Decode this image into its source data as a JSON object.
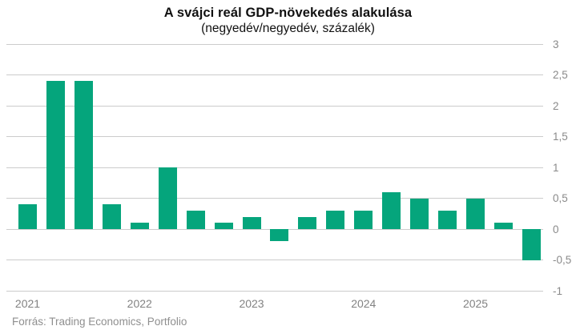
{
  "header": {
    "title": "A svájci reál GDP-növekedés alakulása",
    "subtitle": "(negyedév/negyedév, százalék)"
  },
  "chart_data": {
    "type": "bar",
    "title": "A svájci reál GDP-növekedés alakulása",
    "subtitle": "(negyedév/negyedév, százalék)",
    "categories": [
      "2021 Q1",
      "2021 Q2",
      "2021 Q3",
      "2021 Q4",
      "2022 Q1",
      "2022 Q2",
      "2022 Q3",
      "2022 Q4",
      "2023 Q1",
      "2023 Q2",
      "2023 Q3",
      "2023 Q4",
      "2024 Q1",
      "2024 Q2",
      "2024 Q3",
      "2024 Q4",
      "2025 Q1",
      "2025 Q2",
      "2025 Q3"
    ],
    "values": [
      0.4,
      2.4,
      2.4,
      0.4,
      0.1,
      1.0,
      0.3,
      0.1,
      0.2,
      -0.2,
      0.2,
      0.3,
      0.3,
      0.6,
      0.5,
      0.3,
      0.5,
      0.1,
      -0.5
    ],
    "xlabel": "",
    "ylabel": "",
    "x_tick_labels": [
      "2021",
      "2022",
      "2023",
      "2024",
      "2025"
    ],
    "y_ticks": [
      3,
      2.5,
      2,
      1.5,
      1,
      0.5,
      0,
      -0.5,
      -1
    ],
    "y_tick_labels": [
      "3",
      "2,5",
      "2",
      "1,5",
      "1",
      "0,5",
      "0",
      "-0,5",
      "-1"
    ],
    "ylim": [
      -1,
      3
    ],
    "grid": "horizontal",
    "legend_position": "none",
    "bar_color": "#05a57c",
    "gridline_color": "#cccccc",
    "axis_text_color": "#828282",
    "y_axis_side": "right"
  },
  "footer": {
    "source": "Forrás: Trading Economics, Portfolio"
  }
}
